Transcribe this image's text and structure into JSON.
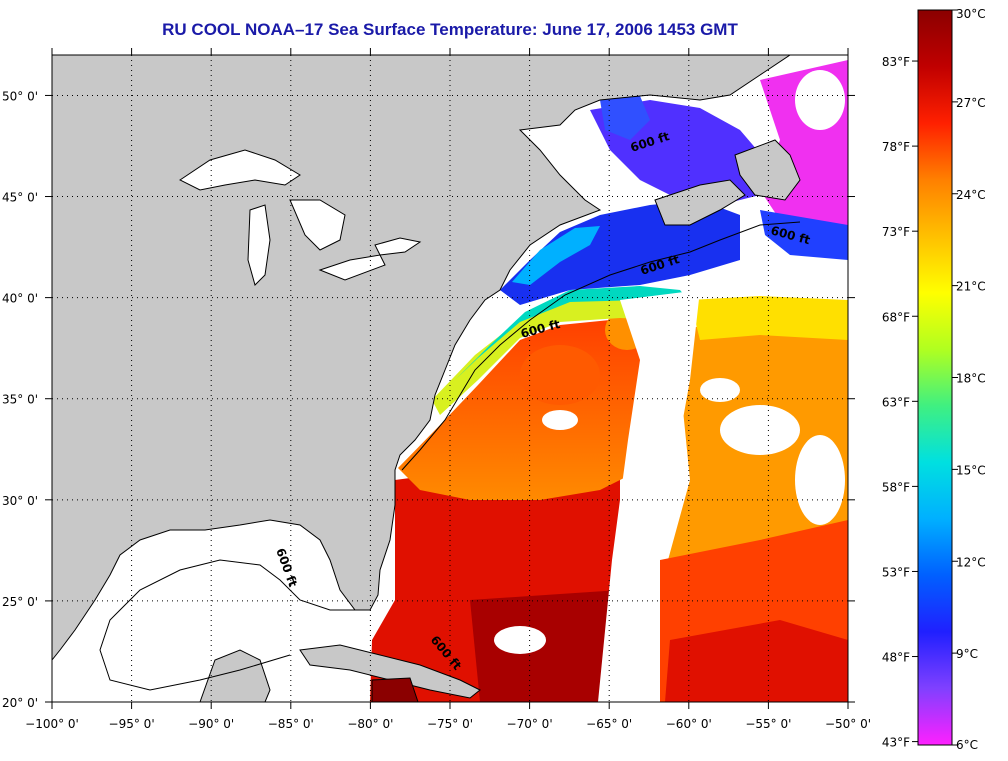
{
  "title": "RU COOL  NOAA–17  Sea Surface Temperature:  June 17, 2006 1453 GMT",
  "map": {
    "longitude_range": [
      -100,
      -50
    ],
    "latitude_range": [
      20,
      52
    ],
    "x_ticks": [
      "−100° 0'",
      "−95° 0'",
      "−90° 0'",
      "−85° 0'",
      "−80° 0'",
      "−75° 0'",
      "−70° 0'",
      "−65° 0'",
      "−60° 0'",
      "−55° 0'",
      "−50° 0'"
    ],
    "y_ticks": [
      "50° 0'",
      "45° 0'",
      "40° 0'",
      "35° 0'",
      "30° 0'",
      "25° 0'",
      "20° 0'"
    ],
    "depth_contour_label": "600 ft",
    "depth_contour_count": 6,
    "land_color": "#c8c8c8",
    "cloud_color": "#ffffff"
  },
  "colorbar": {
    "celsius_labels": [
      "30°C",
      "27°C",
      "24°C",
      "21°C",
      "18°C",
      "15°C",
      "12°C",
      "9°C",
      "6°C"
    ],
    "fahrenheit_labels": [
      "83°F",
      "78°F",
      "73°F",
      "68°F",
      "63°F",
      "58°F",
      "53°F",
      "48°F",
      "43°F"
    ],
    "colors": [
      "#ff20ff",
      "#8040ff",
      "#2020ff",
      "#0060ff",
      "#00b0ff",
      "#00e0e0",
      "#40f080",
      "#b0ff20",
      "#ffff00",
      "#ffc000",
      "#ff8000",
      "#ff2000",
      "#c00000",
      "#8b0000"
    ]
  }
}
